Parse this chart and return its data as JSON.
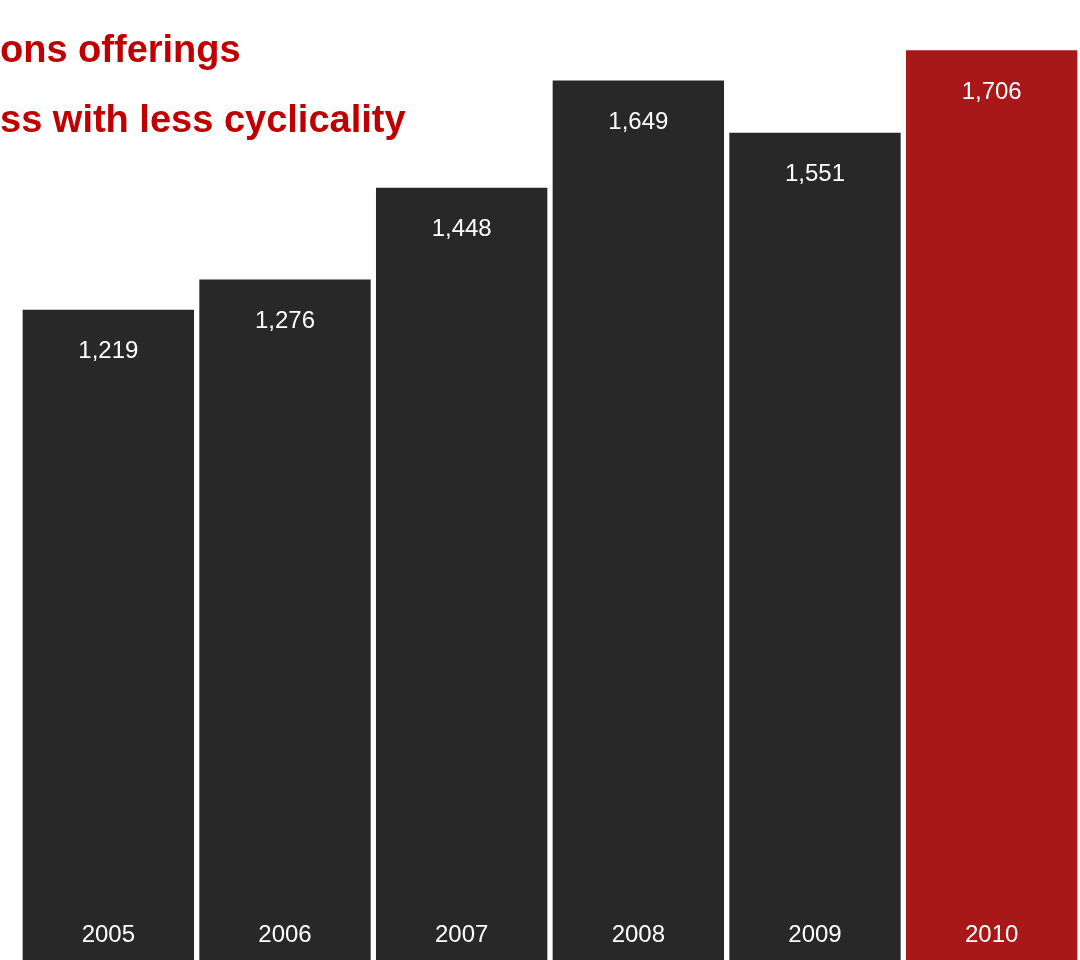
{
  "chart_data": {
    "type": "bar",
    "title": "ons offerings",
    "subtitle": "ss with less cyclicality",
    "categories": [
      "2005",
      "2006",
      "2007",
      "2008",
      "2009",
      "2010"
    ],
    "values": [
      1219,
      1276,
      1448,
      1649,
      1551,
      1706
    ],
    "colors": [
      "#282828",
      "#282828",
      "#282828",
      "#282828",
      "#282828",
      "#a81818"
    ],
    "value_labels": [
      "1,219",
      "1,276",
      "1,448",
      "1,649",
      "1,551",
      "1,706"
    ],
    "tick_labels": "x",
    "grid": false,
    "legend": false
  }
}
